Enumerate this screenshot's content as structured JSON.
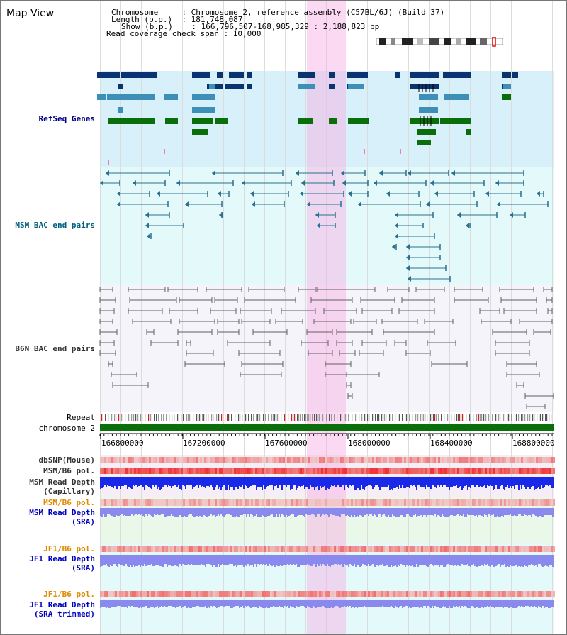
{
  "map_title": "Map View",
  "header": {
    "line1": "Chromosome     : Chromosome 2, reference assembly (C57BL/6J) (Build 37)",
    "line2": "Length (b.p.)  : 181,748,087",
    "line3": "Show (b.p.)    : 166,796,507-168,985,329 : 2,188,823 bp",
    "line4": "Read coverage check span : 10,000"
  },
  "tracks": {
    "refseq": "RefSeq Genes",
    "msm_bac": "MSM BAC end pairs",
    "b6n_bac": "B6N BAC end pairs",
    "repeat": "Repeat",
    "chromosome": "chromosome 2",
    "dbsnp": "dbSNP(Mouse)",
    "msm_pol": "MSM/B6 pol.",
    "msm_depth_cap_1": "MSM Read Depth",
    "msm_depth_cap_2": "(Capillary)",
    "msm_pol2": "MSM/B6 pol.",
    "msm_depth_sra_1": "MSM Read Depth",
    "msm_depth_sra_2": "(SRA)",
    "jf1_pol": "JF1/B6 pol.",
    "jf1_depth_sra_1": "JF1 Read Depth",
    "jf1_depth_sra_2": "(SRA)",
    "jf1_pol2": "JF1/B6 pol.",
    "jf1_depth_trim_1": "JF1 Read Depth",
    "jf1_depth_trim_2": "(SRA trimmed)"
  },
  "axis_ticks": [
    "166800000",
    "167200000",
    "167600000",
    "168000000",
    "168400000",
    "168800000"
  ],
  "colors": {
    "refseq_bg": "#d8f0fa",
    "msm_bg": "#e4fafa",
    "b6n_bg": "#f4f4fa",
    "jf1_bg": "#e4fafa",
    "pale_green_bg": "#eaf8ea",
    "gene_dark": "#0a3470",
    "gene_mid": "#3d8fb8",
    "gene_green": "#0a6e0a",
    "msm_pair": "#2a7090",
    "b6n_pair": "#606060",
    "chromosome_bar": "#0a6e0a",
    "pol_red": "#f05050",
    "depth_blue": "#1a28e8",
    "depth_light": "#8a8aee",
    "label_navy": "#000080",
    "label_teal": "#006080",
    "label_dark": "#333333",
    "label_orange": "#e08a00",
    "label_blue": "#0000c0",
    "highlight": "#f8aae2"
  }
}
